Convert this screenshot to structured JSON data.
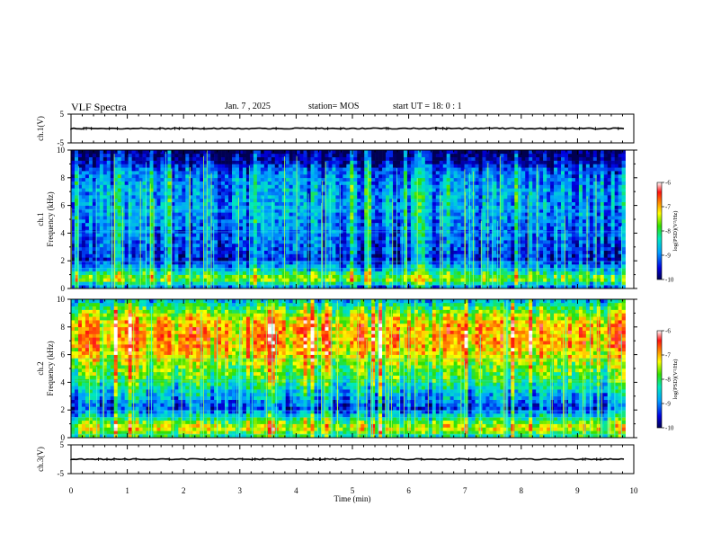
{
  "header": {
    "title": "VLF Spectra",
    "date": "Jan. 7 , 2025",
    "station": "station= MOS",
    "start": "start UT = 18: 0 : 1"
  },
  "chart_data": [
    {
      "panel": "ch1-waveform",
      "type": "line",
      "ylabel": "ch.1(V)",
      "yticks": [
        "5",
        "-5"
      ],
      "ylim": [
        -5,
        5
      ],
      "xlim": [
        0,
        10
      ],
      "level": 0
    },
    {
      "panel": "ch1-spectrogram",
      "type": "heatmap",
      "ylabel_top": "ch.1",
      "ylabel": "Frequency (kHz)",
      "yticks": [
        "0",
        "2",
        "4",
        "6",
        "8",
        "10"
      ],
      "ylim": [
        0,
        10
      ],
      "xlim": [
        0,
        9.85
      ],
      "colorbar": {
        "label": "log(PSD)(V²/Hz)",
        "ticks": [
          "-6",
          "-7",
          "-8",
          "-9",
          "-10"
        ],
        "range": [
          -10,
          -6
        ]
      },
      "profile": [
        -9.3,
        -7.6,
        -8.7,
        -9.5,
        -9.3,
        -9.2,
        -9.1,
        -9.0,
        -8.9,
        -8.9,
        -8.9,
        -9.0,
        -9.2,
        -9.8,
        -10.0
      ]
    },
    {
      "panel": "ch2-spectrogram",
      "type": "heatmap",
      "ylabel_top": "ch.2",
      "ylabel": "Frequency (kHz)",
      "yticks": [
        "0",
        "2",
        "4",
        "6",
        "8",
        "10"
      ],
      "ylim": [
        0,
        10
      ],
      "xlim": [
        0,
        9.85
      ],
      "colorbar": {
        "label": "log(PSD)(V²/Hz)",
        "ticks": [
          "-6",
          "-7",
          "-8",
          "-9",
          "-10"
        ],
        "range": [
          -10,
          -6
        ]
      },
      "profile": [
        -8.4,
        -7.3,
        -8.3,
        -9.4,
        -8.9,
        -8.5,
        -8.0,
        -7.8,
        -7.4,
        -7.1,
        -7.0,
        -7.0,
        -7.3,
        -7.9,
        -8.8
      ]
    },
    {
      "panel": "ch3-waveform",
      "type": "line",
      "ylabel": "ch.3(V)",
      "yticks": [
        "5",
        "-5"
      ],
      "ylim": [
        -5,
        5
      ],
      "xlim": [
        0,
        10
      ],
      "level": 0,
      "xlabel": "Time (min)",
      "xticks": [
        "0",
        "1",
        "2",
        "3",
        "4",
        "5",
        "6",
        "7",
        "8",
        "9",
        "10"
      ]
    }
  ]
}
